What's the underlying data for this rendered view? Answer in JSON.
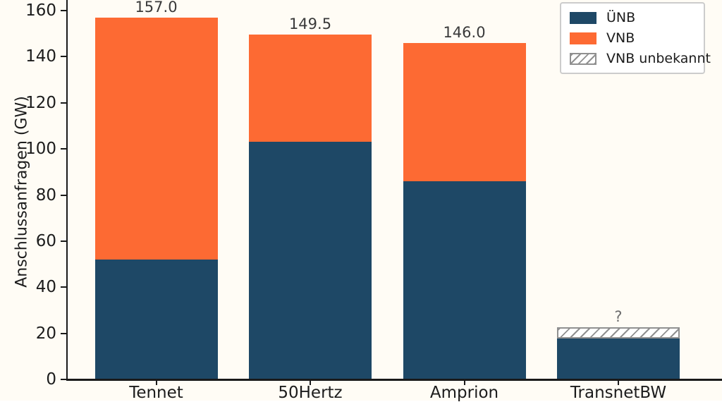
{
  "figure": {
    "background": "#fffcf5",
    "axis_color": "#1a1a1a",
    "tick_label_color": "#1c1c1c",
    "value_label_color": "#3a3a3a",
    "unknown_label_color": "#6e6e6e"
  },
  "chart_data": {
    "type": "bar",
    "stacked": true,
    "title": "",
    "xlabel": "",
    "ylabel": "Anschlussanfragen (GW)",
    "ylim": [
      0,
      160
    ],
    "ytick_step": 20,
    "ytick_labels": [
      "0",
      "20",
      "40",
      "60",
      "80",
      "100",
      "120",
      "140",
      "160"
    ],
    "grid": false,
    "categories": [
      "Tennet",
      "50Hertz",
      "Amprion",
      "TransnetBW"
    ],
    "series": [
      {
        "name": "ÜNB",
        "color": "#1e4866",
        "pattern": "solid",
        "values": [
          52,
          103,
          86,
          17.7
        ]
      },
      {
        "name": "VNB",
        "color": "#fd6a33",
        "pattern": "solid",
        "values": [
          105,
          46.5,
          60,
          0
        ]
      },
      {
        "name": "VNB unbekannt",
        "color": "#909090",
        "pattern": "hatch",
        "values": [
          0,
          0,
          0,
          4.9
        ]
      }
    ],
    "bar_total_labels": [
      "157.0",
      "149.5",
      "146.0",
      "?"
    ],
    "legend_position": "upper right",
    "legend_border_color": "#cccccc",
    "hatch_color": "#909090"
  }
}
